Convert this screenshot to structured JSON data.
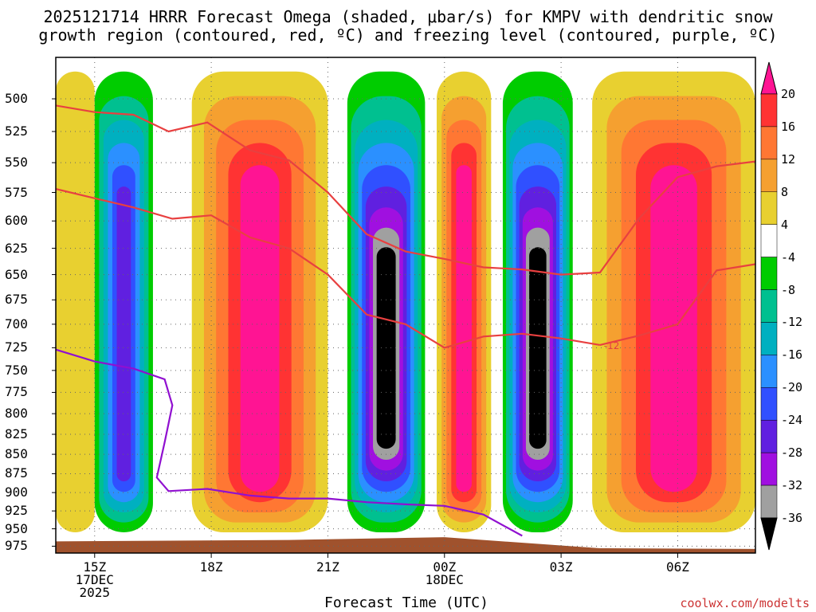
{
  "title_line1": "2025121714 HRRR Forecast Omega (shaded, μbar/s) for KMPV with dendritic snow",
  "title_line2": "growth region (contoured, red, ºC) and freezing level (contoured, purple, ºC)",
  "credit": "coolwx.com/modelts",
  "chart_data": {
    "type": "heatmap",
    "title": "2025121714 HRRR Forecast Omega (shaded, μbar/s) for KMPV with dendritic snow growth region (contoured, red, ºC) and freezing level (contoured, purple, ºC)",
    "xlabel": "Forecast Time (UTC)",
    "ylabel": "",
    "x_ticks": [
      {
        "hour": 15,
        "label": "15Z",
        "sub1": "17DEC",
        "sub2": "2025"
      },
      {
        "hour": 18,
        "label": "18Z",
        "sub1": "",
        "sub2": ""
      },
      {
        "hour": 21,
        "label": "21Z",
        "sub1": "",
        "sub2": ""
      },
      {
        "hour": 24,
        "label": "00Z",
        "sub1": "18DEC",
        "sub2": ""
      },
      {
        "hour": 27,
        "label": "03Z",
        "sub1": "",
        "sub2": ""
      },
      {
        "hour": 30,
        "label": "06Z",
        "sub1": "",
        "sub2": ""
      }
    ],
    "x_range_hours": [
      14,
      32
    ],
    "y_ticks": [
      500,
      525,
      550,
      575,
      600,
      625,
      650,
      675,
      700,
      725,
      750,
      775,
      800,
      825,
      850,
      875,
      900,
      925,
      950,
      975
    ],
    "y_range_hpa": [
      470,
      985
    ],
    "y_scale": "log-pressure",
    "grid": true,
    "colorbar": {
      "labels": [
        "20",
        "16",
        "12",
        "8",
        "4",
        "-4",
        "-8",
        "-12",
        "-16",
        "-20",
        "-24",
        "-28",
        "-32",
        "-36"
      ],
      "colors": [
        "#ff1493",
        "#ff3333",
        "#ff7733",
        "#f5a030",
        "#e8d030",
        "#ffffff",
        "#00cc00",
        "#00c090",
        "#00b0c0",
        "#2b90ff",
        "#3050ff",
        "#6020e0",
        "#a010e0",
        "#a0a0a0",
        "#000000"
      ],
      "ranges": [
        ">20",
        "16 to 20",
        "12 to 16",
        "8 to 12",
        "4 to 8",
        "-4 to 4",
        "-8 to -4",
        "-12 to -8",
        "-16 to -12",
        "-20 to -16",
        "-24 to -20",
        "-28 to -24",
        "-32 to -28",
        "-36 to -32",
        "<-36"
      ]
    },
    "omega_columns": [
      {
        "x_start": 14.0,
        "x_end": 15.0,
        "column_value": 6,
        "note": "weak positive omega"
      },
      {
        "x_start": 15.0,
        "x_end": 16.5,
        "column_value": -26,
        "note": "upward motion core near 825 hPa"
      },
      {
        "x_start": 17.5,
        "x_end": 21.0,
        "column_value": 22,
        "note": "strong subsidence"
      },
      {
        "x_start": 21.5,
        "x_end": 23.5,
        "column_value": -40,
        "note": "strong ascent core"
      },
      {
        "x_start": 23.8,
        "x_end": 25.2,
        "column_value": 22,
        "note": "subsidence"
      },
      {
        "x_start": 25.5,
        "x_end": 27.3,
        "column_value": -40,
        "note": "strong ascent core"
      },
      {
        "x_start": 27.8,
        "x_end": 32.0,
        "column_value": 22,
        "note": "subsidence"
      }
    ],
    "series": [
      {
        "name": "",
        "color": "#e84040",
        "points": [
          [
            14,
            505
          ],
          [
            15,
            510
          ],
          [
            16,
            512
          ],
          [
            16.9,
            525
          ],
          [
            17.9,
            518
          ],
          [
            19,
            540
          ],
          [
            20,
            548
          ],
          [
            21,
            575
          ],
          [
            22,
            612
          ],
          [
            23,
            628
          ],
          [
            24,
            635
          ],
          [
            25,
            643
          ],
          [
            26,
            645
          ],
          [
            27,
            650
          ],
          [
            28,
            648
          ],
          [
            29,
            598
          ],
          [
            30,
            562
          ],
          [
            31,
            553
          ],
          [
            32,
            549
          ]
        ]
      },
      {
        "name": "",
        "color": "#e84040",
        "points": [
          [
            14,
            572
          ],
          [
            15,
            580
          ],
          [
            16,
            588
          ],
          [
            17,
            598
          ],
          [
            18,
            595
          ],
          [
            19,
            615
          ],
          [
            20,
            625
          ],
          [
            21,
            650
          ],
          [
            22,
            690
          ],
          [
            23,
            700
          ],
          [
            24,
            725
          ],
          [
            25,
            713
          ],
          [
            26,
            710
          ],
          [
            27,
            715
          ],
          [
            28,
            722
          ]
        ]
      },
      {
        "name": "",
        "color": "#e84040",
        "points": [
          [
            28,
            722
          ],
          [
            29,
            712
          ],
          [
            30,
            700
          ],
          [
            31,
            646
          ],
          [
            32,
            640
          ]
        ]
      },
      {
        "name": "",
        "color": "#9010d0",
        "points": [
          [
            14,
            727
          ],
          [
            15,
            740
          ],
          [
            16,
            748
          ],
          [
            16.8,
            760
          ],
          [
            17,
            790
          ],
          [
            16.8,
            835
          ],
          [
            16.6,
            880
          ],
          [
            16.9,
            898
          ],
          [
            17.9,
            895
          ],
          [
            19,
            904
          ],
          [
            20,
            908
          ],
          [
            21,
            908
          ],
          [
            22,
            913
          ],
          [
            23,
            916
          ],
          [
            24,
            918
          ],
          [
            25,
            930
          ],
          [
            26,
            960
          ]
        ]
      }
    ],
    "annotations": [
      "-12"
    ]
  }
}
